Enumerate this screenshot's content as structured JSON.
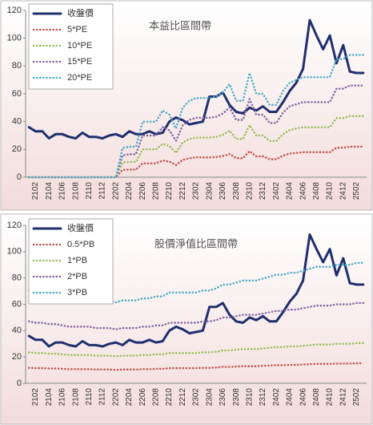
{
  "chart_data": [
    {
      "type": "line",
      "title": "本益比區間帶",
      "categories": [
        null,
        "2102",
        null,
        "2104",
        null,
        "2106",
        null,
        "2108",
        null,
        "2110",
        null,
        "2112",
        null,
        "2202",
        null,
        "2204",
        null,
        "2206",
        null,
        "2208",
        null,
        "2210",
        null,
        "2212",
        null,
        "2302",
        null,
        "2304",
        null,
        "2306",
        null,
        "2308",
        null,
        "2310",
        null,
        "2312",
        null,
        "2402",
        null,
        "2404",
        null,
        "2406",
        null,
        "2408",
        null,
        "2410",
        null,
        "2412",
        null,
        "2502",
        null
      ],
      "ylim": [
        0,
        120
      ],
      "yticks": [
        0,
        20,
        40,
        60,
        80,
        100,
        120
      ],
      "grid": false,
      "legend": "top-left",
      "series": [
        {
          "name": "收盤價",
          "color": "#1f2f6e",
          "style": "solid",
          "values": [
            36,
            33,
            33,
            28,
            31,
            31,
            29,
            28,
            32,
            29,
            29,
            28,
            30,
            31,
            29,
            33,
            31,
            31,
            33,
            31,
            32,
            40,
            43,
            41,
            38,
            39,
            40,
            58,
            58,
            61,
            52,
            47,
            46,
            50,
            48,
            51,
            47,
            47,
            54,
            62,
            68,
            78,
            113,
            102,
            92,
            102,
            82,
            95,
            76,
            75,
            75
          ]
        },
        {
          "name": "5*PE",
          "color": "#c0504d",
          "style": "dotted",
          "values": [
            0,
            0,
            0,
            0,
            0,
            0,
            0,
            0,
            0,
            0,
            0,
            0,
            0,
            0,
            5.25,
            5.5,
            5.5,
            10,
            10,
            10,
            12,
            11.25,
            8.75,
            12.5,
            13.75,
            14.25,
            14.25,
            14.25,
            14.5,
            15.25,
            16.75,
            13.75,
            13.75,
            18.75,
            15,
            15,
            13,
            13,
            15.5,
            17,
            17.5,
            18,
            18,
            18,
            18,
            18,
            21.25,
            21.25,
            22,
            22,
            22
          ]
        },
        {
          "name": "10*PE",
          "color": "#9bbb59",
          "style": "dotted",
          "values": [
            0,
            0,
            0,
            0,
            0,
            0,
            0,
            0,
            0,
            0,
            0,
            0,
            0,
            0,
            10.5,
            11,
            11,
            20,
            20,
            20,
            24,
            22.5,
            17.5,
            25,
            27.5,
            28.5,
            28.5,
            28.5,
            29,
            30.5,
            33.5,
            27.5,
            27.5,
            37.5,
            30,
            30,
            26,
            26,
            31,
            34,
            35,
            36,
            36,
            36,
            36,
            36,
            42.5,
            42.5,
            44,
            44,
            44
          ]
        },
        {
          "name": "15*PE",
          "color": "#8064a2",
          "style": "dotted",
          "values": [
            0,
            0,
            0,
            0,
            0,
            0,
            0,
            0,
            0,
            0,
            0,
            0,
            0,
            0,
            15.75,
            16.5,
            16.5,
            30,
            30,
            30,
            36,
            33.75,
            26.25,
            37.5,
            41.25,
            42.75,
            42.75,
            42.75,
            43.5,
            45.75,
            50.25,
            41.25,
            41.25,
            56.25,
            45,
            45,
            39,
            39,
            46.5,
            51,
            52.5,
            54,
            54,
            54,
            54,
            54,
            63.75,
            63.75,
            66,
            66,
            66
          ]
        },
        {
          "name": "20*PE",
          "color": "#4bacc6",
          "style": "dotted",
          "values": [
            0,
            0,
            0,
            0,
            0,
            0,
            0,
            0,
            0,
            0,
            0,
            0,
            0,
            0,
            21,
            22,
            22,
            40,
            40,
            40,
            48,
            45,
            35,
            50,
            55,
            57,
            57,
            57,
            58,
            61,
            67,
            55,
            55,
            75,
            60,
            60,
            52,
            52,
            62,
            68,
            70,
            72,
            72,
            72,
            72,
            72,
            85,
            85,
            88,
            88,
            88
          ]
        }
      ]
    },
    {
      "type": "line",
      "title": "股價淨值比區間帶",
      "categories": [
        null,
        "2102",
        null,
        "2104",
        null,
        "2106",
        null,
        "2108",
        null,
        "2110",
        null,
        "2112",
        null,
        "2202",
        null,
        "2204",
        null,
        "2206",
        null,
        "2208",
        null,
        "2210",
        null,
        "2212",
        null,
        "2302",
        null,
        "2304",
        null,
        "2306",
        null,
        "2308",
        null,
        "2310",
        null,
        "2312",
        null,
        "2402",
        null,
        "2404",
        null,
        "2406",
        null,
        "2408",
        null,
        "2410",
        null,
        "2412",
        null,
        "2502",
        null
      ],
      "ylim": [
        0,
        120
      ],
      "yticks": [
        0,
        20,
        40,
        60,
        80,
        100,
        120
      ],
      "grid": false,
      "legend": "top-left",
      "series": [
        {
          "name": "收盤價",
          "color": "#1f2f6e",
          "style": "solid",
          "values": [
            36,
            33,
            33,
            28,
            31,
            31,
            29,
            28,
            32,
            29,
            29,
            28,
            30,
            31,
            29,
            33,
            31,
            31,
            33,
            31,
            32,
            40,
            43,
            41,
            38,
            39,
            40,
            58,
            58,
            61,
            52,
            47,
            46,
            50,
            48,
            51,
            47,
            47,
            54,
            62,
            68,
            78,
            113,
            102,
            92,
            102,
            82,
            95,
            76,
            75,
            75
          ]
        },
        {
          "name": "0.5*PB",
          "color": "#c0504d",
          "style": "dotted",
          "values": [
            11.75,
            11.5,
            11.5,
            11.25,
            11.25,
            11,
            10.75,
            10.75,
            10.75,
            10.75,
            10.5,
            10.5,
            10.5,
            10.25,
            10.5,
            10.5,
            10.5,
            10.75,
            10.75,
            11,
            11,
            11.5,
            11.5,
            11.5,
            11.5,
            11.5,
            11.75,
            11.75,
            12,
            12.5,
            12.5,
            12.75,
            13,
            13,
            13,
            13.25,
            13.5,
            13.75,
            13.75,
            14,
            14,
            14.25,
            14.5,
            14.75,
            14.75,
            14.75,
            15,
            15,
            15,
            15.25,
            15.25
          ]
        },
        {
          "name": "1*PB",
          "color": "#9bbb59",
          "style": "dotted",
          "values": [
            23.5,
            23,
            23,
            22.5,
            22.5,
            22,
            21.5,
            21.5,
            21.5,
            21.5,
            21,
            21,
            21,
            20.5,
            21,
            21,
            21,
            21.5,
            21.5,
            22,
            22,
            23,
            23,
            23,
            23,
            23,
            23.5,
            23.5,
            24,
            25,
            25,
            25.5,
            26,
            26,
            26,
            26.5,
            27,
            27.5,
            27.5,
            28,
            28,
            28.5,
            29,
            29.5,
            29.5,
            29.5,
            30,
            30,
            30,
            30.5,
            30.5
          ]
        },
        {
          "name": "2*PB",
          "color": "#8064a2",
          "style": "dotted",
          "values": [
            47,
            46,
            46,
            45,
            45,
            44,
            43,
            43,
            43,
            43,
            42,
            42,
            42,
            41,
            42,
            42,
            42,
            43,
            43,
            44,
            44,
            46,
            46,
            46,
            46,
            46,
            47,
            47,
            48,
            50,
            50,
            51,
            52,
            52,
            52,
            53,
            54,
            55,
            55,
            56,
            56,
            57,
            58,
            59,
            59,
            59,
            60,
            60,
            60,
            61,
            61
          ]
        },
        {
          "name": "3*PB",
          "color": "#4bacc6",
          "style": "dotted",
          "values": [
            70.5,
            69,
            69,
            67.5,
            67.5,
            66,
            64.5,
            64.5,
            64.5,
            64.5,
            63,
            63,
            63,
            61.5,
            63,
            63,
            63,
            64.5,
            64.5,
            66,
            66,
            69,
            69,
            69,
            69,
            69,
            70.5,
            70.5,
            72,
            75,
            75,
            76.5,
            78,
            78,
            78,
            79.5,
            81,
            82.5,
            82.5,
            84,
            84,
            85.5,
            87,
            88.5,
            88.5,
            88.5,
            90,
            90,
            90,
            91.5,
            91.5
          ]
        }
      ]
    }
  ]
}
